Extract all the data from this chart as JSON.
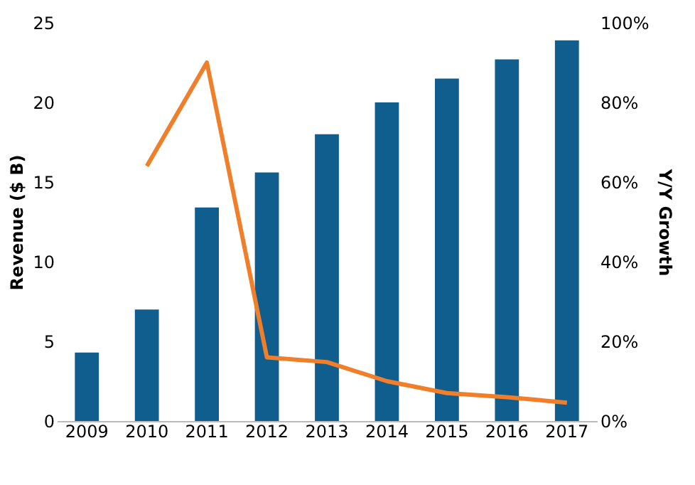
{
  "chart_data": {
    "type": "bar",
    "categories": [
      "2009",
      "2010",
      "2011",
      "2012",
      "2013",
      "2014",
      "2015",
      "2016",
      "2017"
    ],
    "ylabel": "Revenue ($ B)",
    "y2label": "Y/Y Growth",
    "ylim": [
      0,
      25
    ],
    "yticks": [
      0,
      5,
      10,
      15,
      20,
      25
    ],
    "y2lim": [
      0,
      100
    ],
    "y2ticks": [
      {
        "value": 0,
        "label": "0%"
      },
      {
        "value": 20,
        "label": "20%"
      },
      {
        "value": 40,
        "label": "40%"
      },
      {
        "value": 60,
        "label": "60%"
      },
      {
        "value": 80,
        "label": "80%"
      },
      {
        "value": 100,
        "label": "100%"
      }
    ],
    "grid": false,
    "series": [
      {
        "color": "#0f5e8e",
        "values": [
          4.3,
          7.0,
          13.4,
          15.6,
          18.0,
          20.0,
          21.5,
          22.7,
          23.9
        ]
      },
      {
        "type": "line",
        "axis": "y2",
        "color": "#f07f2b",
        "values": [
          null,
          64,
          90,
          16,
          14.8,
          10,
          7,
          6,
          4.6
        ]
      }
    ]
  }
}
